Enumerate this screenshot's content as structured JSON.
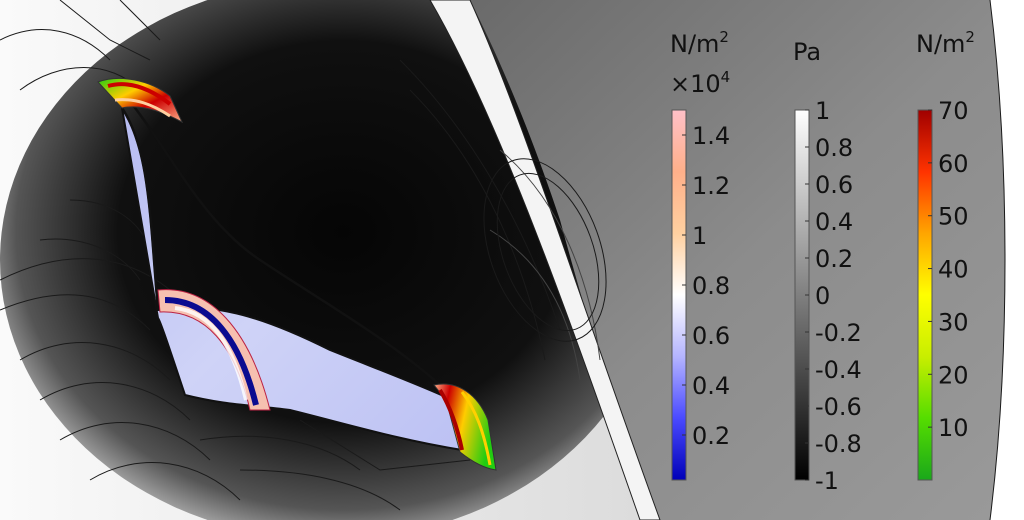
{
  "colors": {
    "background_gray": "#8a8a8a",
    "shadow_black": "#0b0b0b",
    "light_gray": "#f2f2f2",
    "blade_base": "#c9cdf4",
    "blade_edge_red": "#b00000",
    "blade_edge_green": "#22cc11"
  },
  "legends": [
    {
      "id": "stress",
      "unit": "N/m",
      "unit_exp": "2",
      "multiplier": "×10",
      "multiplier_exp": "4",
      "colormap": "thermal",
      "ticks": [
        "1.4",
        "1.2",
        "1",
        "0.8",
        "0.6",
        "0.4",
        "0.2"
      ],
      "range": [
        0.02,
        1.5
      ],
      "tick_values": [
        1.4,
        1.2,
        1.0,
        0.8,
        0.6,
        0.4,
        0.2
      ],
      "stops": [
        "#0000b8",
        "#4a4aff",
        "#b4b4ff",
        "#ffffff",
        "#ffd0a0",
        "#ffb08a",
        "#ffc0c8"
      ]
    },
    {
      "id": "pressure",
      "unit": "Pa",
      "colormap": "grayscale",
      "ticks": [
        "1",
        "0.8",
        "0.6",
        "0.4",
        "0.2",
        "0",
        "-0.2",
        "-0.4",
        "-0.6",
        "-0.8",
        "-1"
      ],
      "range": [
        -1,
        1
      ],
      "tick_values": [
        1,
        0.8,
        0.6,
        0.4,
        0.2,
        0,
        -0.2,
        -0.4,
        -0.6,
        -0.8,
        -1
      ],
      "stops": [
        "#000000",
        "#ffffff"
      ]
    },
    {
      "id": "shear",
      "unit": "N/m",
      "unit_exp": "2",
      "colormap": "rainbow",
      "ticks": [
        "70",
        "60",
        "50",
        "40",
        "30",
        "20",
        "10"
      ],
      "range": [
        0,
        70
      ],
      "tick_values": [
        70,
        60,
        50,
        40,
        30,
        20,
        10
      ],
      "stops": [
        "#1aa81a",
        "#55dd00",
        "#c8ee00",
        "#ffff00",
        "#ffa500",
        "#ff3300",
        "#a00000"
      ]
    }
  ]
}
